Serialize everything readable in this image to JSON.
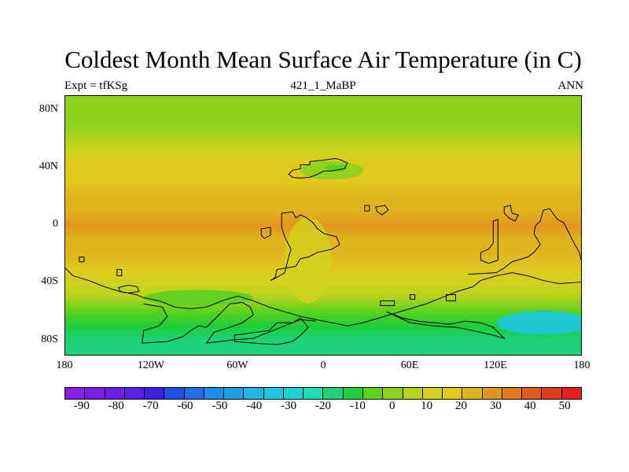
{
  "figure": {
    "title": "Coldest Month Mean Surface Air Temperature (in C)",
    "left_label": "Expt = tfKSg",
    "center_label": "421_1_MaBP",
    "right_label": "ANN"
  },
  "map": {
    "projection": "cylindrical equidistant",
    "lon_range": [
      -180,
      180
    ],
    "lat_range": [
      -90,
      90
    ],
    "lat_ticks": [
      "80N",
      "40N",
      "0",
      "40S",
      "80S"
    ],
    "lon_ticks": [
      "180",
      "120W",
      "60W",
      "0",
      "60E",
      "120E",
      "180"
    ],
    "coastline_color": "#000000"
  },
  "colorbar": {
    "colors": [
      "#8c1ee6",
      "#7a1ee6",
      "#6a1ee6",
      "#5a1ee8",
      "#3a20e0",
      "#1e50e6",
      "#1e6ee8",
      "#1e8cea",
      "#1ea0ea",
      "#1eb4e6",
      "#1ec4e0",
      "#1ed2d4",
      "#1edcb4",
      "#1ed278",
      "#1ece3c",
      "#5ad21e",
      "#8cd21e",
      "#b4d21e",
      "#d2d21e",
      "#e0c81e",
      "#e0b41e",
      "#e0961e",
      "#e0781e",
      "#e05a1e",
      "#e03c1e",
      "#e61e1e"
    ],
    "labels": [
      "-90",
      "-80",
      "-70",
      "-60",
      "-50",
      "-40",
      "-30",
      "-20",
      "-10",
      "0",
      "10",
      "20",
      "30",
      "40",
      "50"
    ],
    "units": "C"
  },
  "chart_data": {
    "type": "heatmap",
    "title": "Coldest Month Mean Surface Air Temperature (in C)",
    "variable": "coldest month mean surface air temperature",
    "units": "C",
    "x": "longitude",
    "y": "latitude",
    "xlim": [
      -180,
      180
    ],
    "ylim": [
      -90,
      90
    ],
    "color_range": [
      -90,
      50
    ],
    "zonal_profile": {
      "lat": [
        90,
        80,
        70,
        60,
        50,
        40,
        30,
        20,
        10,
        0,
        -10,
        -20,
        -30,
        -40,
        -50,
        -60,
        -70,
        -80,
        -90
      ],
      "value": [
        -2,
        0,
        3,
        8,
        12,
        16,
        18,
        22,
        26,
        27,
        26,
        22,
        16,
        10,
        4,
        -8,
        -14,
        -16,
        -16
      ]
    }
  }
}
